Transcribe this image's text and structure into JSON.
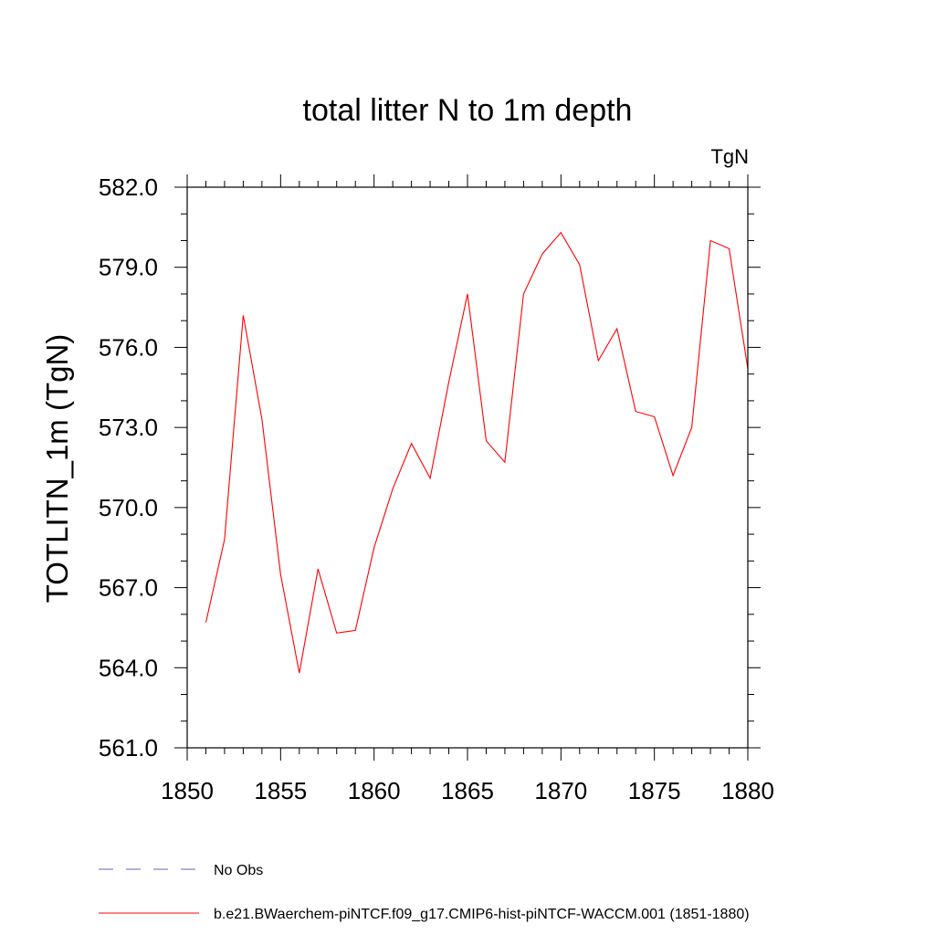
{
  "chart_data": {
    "type": "line",
    "title": "total litter N to 1m depth",
    "units_label": "TgN",
    "ylabel": "TOTLITN_1m  (TgN)",
    "xlabel": "",
    "xlim": [
      1850,
      1880
    ],
    "ylim": [
      561.0,
      582.0
    ],
    "x_ticks": [
      1850,
      1855,
      1860,
      1865,
      1870,
      1875,
      1880
    ],
    "x_tick_labels": [
      "1850",
      "1855",
      "1860",
      "1865",
      "1870",
      "1875",
      "1880"
    ],
    "y_ticks": [
      561.0,
      564.0,
      567.0,
      570.0,
      573.0,
      576.0,
      579.0,
      582.0
    ],
    "y_tick_labels": [
      "561.0",
      "564.0",
      "567.0",
      "570.0",
      "573.0",
      "576.0",
      "579.0",
      "582.0"
    ],
    "grid": false,
    "legend_position": "bottom",
    "series": [
      {
        "name": "b.e21.BWaerchem-piNTCF.f09_g17.CMIP6-hist-piNTCF-WACCM.001 (1851-1880)",
        "color": "#ff0000",
        "style": "solid",
        "x": [
          1851,
          1852,
          1853,
          1854,
          1855,
          1856,
          1857,
          1858,
          1859,
          1860,
          1861,
          1862,
          1863,
          1864,
          1865,
          1866,
          1867,
          1868,
          1869,
          1870,
          1871,
          1872,
          1873,
          1874,
          1875,
          1876,
          1877,
          1878,
          1879,
          1880
        ],
        "y": [
          565.7,
          568.8,
          577.2,
          573.3,
          567.5,
          563.8,
          567.7,
          565.3,
          565.4,
          568.5,
          570.7,
          572.4,
          571.1,
          574.7,
          578.0,
          572.5,
          571.7,
          578.0,
          579.5,
          580.3,
          579.1,
          575.5,
          576.7,
          573.6,
          573.4,
          571.2,
          573.0,
          580.0,
          579.7,
          575.2
        ]
      }
    ],
    "legend": [
      {
        "label": "No Obs",
        "color": "#6b5fb5",
        "style": "dashed"
      },
      {
        "label": "b.e21.BWaerchem-piNTCF.f09_g17.CMIP6-hist-piNTCF-WACCM.001 (1851-1880)",
        "color": "#ff0000",
        "style": "solid"
      }
    ]
  }
}
